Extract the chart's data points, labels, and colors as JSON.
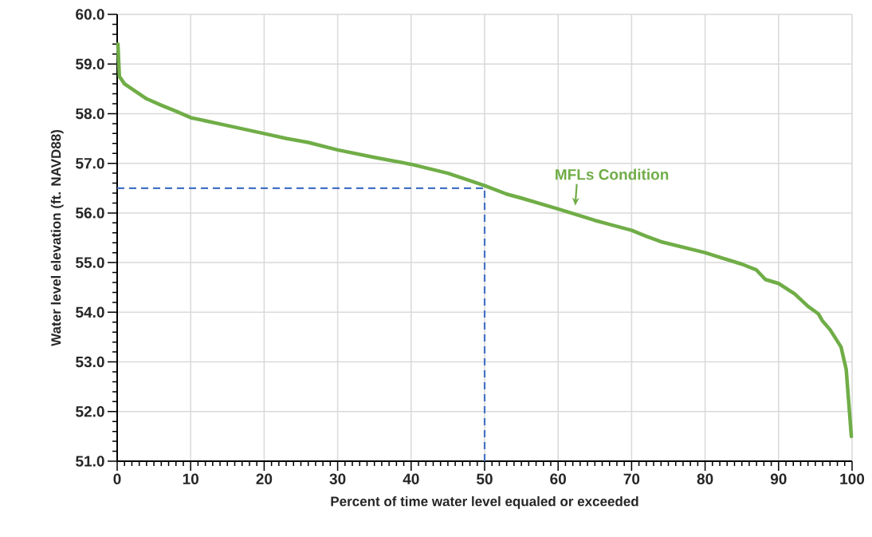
{
  "chart_data": {
    "type": "line",
    "xlabel": "Percent of time water level equaled or exceeded",
    "ylabel": "Water level elevation (ft. NAVD88)",
    "xlim": [
      0,
      100
    ],
    "ylim": [
      51,
      60
    ],
    "xticks": [
      0,
      10,
      20,
      30,
      40,
      50,
      60,
      70,
      80,
      90,
      100
    ],
    "yticks": [
      {
        "value": 51,
        "label": "51.0"
      },
      {
        "value": 52,
        "label": "52.0"
      },
      {
        "value": 53,
        "label": "53.0"
      },
      {
        "value": 54,
        "label": "54.0"
      },
      {
        "value": 55,
        "label": "55.0"
      },
      {
        "value": 56,
        "label": "56.0"
      },
      {
        "value": 57,
        "label": "57.0"
      },
      {
        "value": 58,
        "label": "58.0"
      },
      {
        "value": 59,
        "label": "59.0"
      },
      {
        "value": 60,
        "label": "60.0"
      }
    ],
    "grid": true,
    "marker": "none",
    "line_style": "solid",
    "series": [
      {
        "color": "#70ad47",
        "x": [
          0.1,
          0.3,
          1,
          2,
          4,
          6,
          8,
          10,
          15,
          20,
          23,
          26,
          30,
          35,
          40,
          45,
          48,
          50,
          53,
          55,
          60,
          65,
          70,
          72,
          74,
          80,
          81.7,
          85,
          87,
          88.2,
          90,
          92.2,
          94,
          95.4,
          96,
          97,
          98.5,
          99.2,
          99.9
        ],
        "values": [
          59.4,
          58.75,
          58.6,
          58.5,
          58.3,
          58.17,
          58.05,
          57.92,
          57.76,
          57.6,
          57.5,
          57.42,
          57.27,
          57.12,
          56.98,
          56.8,
          56.65,
          56.55,
          56.38,
          56.3,
          56.08,
          55.85,
          55.65,
          55.53,
          55.42,
          55.2,
          55.12,
          54.97,
          54.85,
          54.66,
          54.58,
          54.37,
          54.12,
          53.97,
          53.82,
          53.65,
          53.3,
          52.85,
          51.5
        ]
      }
    ],
    "ref_lines": [
      {
        "axis": "y",
        "value": 56.5,
        "color": "#4472c4",
        "line_style": "dashed"
      },
      {
        "axis": "x",
        "value": 50,
        "color": "#4472c4",
        "line_style": "dashed"
      }
    ],
    "annotations": [
      {
        "text": "MFLs Condition",
        "x": 62,
        "y": 56.02
      }
    ]
  }
}
